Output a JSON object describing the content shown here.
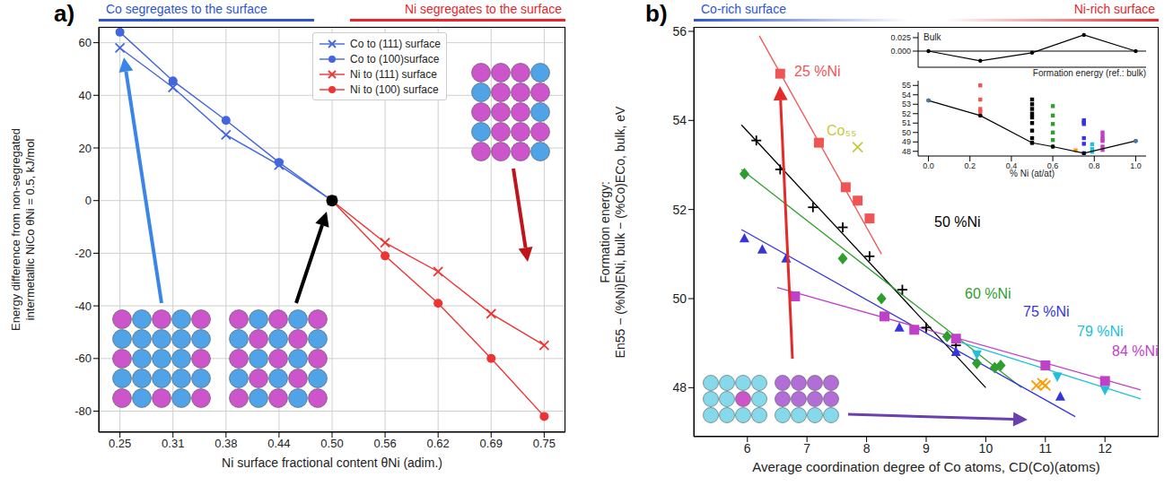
{
  "chart_data": [
    {
      "type": "line",
      "panel_label": "a)",
      "annotations": [
        {
          "text": "Co segregates to the surface",
          "color": "#2d55d6"
        },
        {
          "text": "Ni segregates to the surface",
          "color": "#e8262b"
        }
      ],
      "xlabel": "Ni surface fractional content θNi (adim.)",
      "ylabel": [
        "Energy difference from non-segregated",
        "intermetallic NiCo θNi = 0.5, kJ/mol"
      ],
      "xlim": [
        0.225,
        0.775
      ],
      "xticks": [
        0.25,
        {
          "value": 0.3125,
          "label": "0.31"
        },
        {
          "value": 0.375,
          "label": "0.38"
        },
        {
          "value": 0.4375,
          "label": "0.44"
        },
        {
          "value": 0.5,
          "label": "0.50"
        },
        {
          "value": 0.5625,
          "label": "0.56"
        },
        {
          "value": 0.625,
          "label": "0.62"
        },
        {
          "value": 0.6875,
          "label": "0.69"
        },
        0.75
      ],
      "ylim": [
        -88,
        66
      ],
      "yticks": [
        -80,
        -60,
        -40,
        -20,
        0,
        20,
        40,
        60
      ],
      "grid": true,
      "legend": "upper right",
      "series": [
        {
          "name": "Co to (111) surface",
          "color": "#4466dd",
          "marker": "x",
          "x": [
            0.25,
            0.3125,
            0.375,
            0.4375,
            0.5
          ],
          "values": [
            58,
            43,
            25,
            13.5,
            0
          ]
        },
        {
          "name": "Co to (100)surface",
          "color": "#4466dd",
          "marker": "circle",
          "x": [
            0.25,
            0.3125,
            0.375,
            0.4375,
            0.5
          ],
          "values": [
            64,
            45.5,
            30.5,
            14.5,
            0
          ]
        },
        {
          "name": "Ni to (111) surface",
          "color": "#ee3333",
          "marker": "x",
          "x": [
            0.5,
            0.5625,
            0.625,
            0.6875,
            0.75
          ],
          "values": [
            0,
            -16,
            -27,
            -43,
            -55
          ]
        },
        {
          "name": "Ni to (100) surface",
          "color": "#ee3333",
          "marker": "circle",
          "x": [
            0.5,
            0.5625,
            0.625,
            0.6875,
            0.75
          ],
          "values": [
            0,
            -21,
            -39,
            -60,
            -82
          ]
        }
      ],
      "point": {
        "x": 0.5,
        "y": 0,
        "color": "#000000"
      }
    },
    {
      "type": "scatter",
      "panel_label": "b)",
      "annotations": [
        {
          "text": "Co-rich surface",
          "color": "#2d55d6"
        },
        {
          "text": "Ni-rich surface",
          "color": "#e8262b"
        }
      ],
      "xlabel": "Average coordination degree of Co atoms, CD(Co)(atoms)",
      "ylabel": [
        "Formation energy:",
        "En55 − (%Ni)ENi, bulk − (%Co)ECo, bulk, eV"
      ],
      "xlim": [
        5.1,
        12.9
      ],
      "xticks": [
        6,
        7,
        8,
        9,
        10,
        11,
        12
      ],
      "ylim": [
        46.9,
        56.1
      ],
      "yticks": [
        48,
        50,
        52,
        54,
        56
      ],
      "grid": false,
      "series": [
        {
          "name": "25 %Ni",
          "color": "#f05555",
          "marker": "square",
          "x": [
            6.55,
            7.2,
            7.65,
            7.85,
            8.05
          ],
          "values": [
            55.05,
            53.5,
            52.5,
            52.2,
            51.8
          ],
          "fit": {
            "x": [
              6.2,
              8.25
            ],
            "values": [
              55.9,
              51.0
            ]
          }
        },
        {
          "name": "50 %Ni",
          "color": "#000000",
          "marker": "plus",
          "x": [
            6.15,
            6.55,
            7.1,
            7.6,
            8.05,
            8.6,
            9.0,
            9.5
          ],
          "values": [
            53.55,
            52.9,
            52.05,
            51.6,
            50.95,
            50.2,
            49.35,
            48.95
          ],
          "fit": {
            "x": [
              5.9,
              10.0
            ],
            "values": [
              53.9,
              48.0
            ]
          }
        },
        {
          "name": "Co₅₅",
          "color": "#c8c83c",
          "marker": "x",
          "x": [
            7.85
          ],
          "values": [
            53.4
          ]
        },
        {
          "name": "60 %Ni",
          "color": "#2e9e2e",
          "marker": "diamond",
          "x": [
            5.95,
            7.6,
            8.25,
            9.35,
            9.85,
            10.15,
            10.25
          ],
          "values": [
            52.8,
            50.9,
            50.0,
            49.15,
            48.55,
            48.45,
            48.5
          ],
          "fit": {
            "x": [
              5.9,
              10.6
            ],
            "values": [
              52.9,
              48.0
            ]
          }
        },
        {
          "name": "75 %Ni",
          "color": "#3535e0",
          "marker": "triangle",
          "x": [
            5.95,
            6.25,
            6.65,
            8.55,
            9.5,
            11.25
          ],
          "values": [
            51.35,
            51.1,
            50.9,
            49.35,
            48.8,
            47.8
          ],
          "fit": {
            "x": [
              5.9,
              11.5
            ],
            "values": [
              51.55,
              47.35
            ]
          }
        },
        {
          "name": "79 %Ni",
          "color": "#20c0d8",
          "marker": "triangle_down",
          "x": [
            9.85,
            11.2,
            12.0
          ],
          "values": [
            48.75,
            48.25,
            47.95
          ],
          "fit": {
            "x": [
              9.5,
              12.6
            ],
            "values": [
              49.05,
              47.75
            ]
          }
        },
        {
          "name": "84 %Ni",
          "color": "#c040c8",
          "marker": "square",
          "x": [
            6.8,
            8.3,
            8.8,
            9.5,
            11.0,
            12.0
          ],
          "values": [
            50.05,
            49.6,
            49.3,
            49.1,
            48.5,
            48.15
          ],
          "fit": {
            "x": [
              6.5,
              12.6
            ],
            "values": [
              50.25,
              47.95
            ]
          }
        },
        {
          "color": "#ff9900",
          "marker": "x",
          "x": [
            10.85,
            10.95,
            11.0
          ],
          "values": [
            48.05,
            48.1,
            48.05
          ]
        }
      ]
    },
    {
      "type": "line",
      "title": "Bulk",
      "xlim": [
        -0.05,
        1.05
      ],
      "tick_labels": "y",
      "ylim": [
        -0.03,
        0.035
      ],
      "yticks": [
        {
          "value": 0,
          "label": "0.000"
        },
        0.025
      ],
      "hline": 0,
      "series": [
        {
          "type": "line",
          "color": "#000000",
          "marker": "circle",
          "x": [
            0,
            0.25,
            0.5,
            0.75,
            1
          ],
          "values": [
            0,
            -0.018,
            -0.003,
            0.03,
            0
          ]
        }
      ]
    },
    {
      "type": "line",
      "title": "Formation energy (ref.: bulk)",
      "xlabel": "% Ni (at/at)",
      "xlim": [
        -0.05,
        1.05
      ],
      "xticks": [
        {
          "value": 0,
          "label": "0.0"
        },
        0.2,
        0.4,
        0.6,
        0.8,
        {
          "value": 1,
          "label": "1.0"
        }
      ],
      "ylim": [
        47.5,
        55.5
      ],
      "yticks": [
        48,
        49,
        50,
        51,
        52,
        53,
        54,
        55
      ],
      "series": [
        {
          "type": "scatter",
          "color": "#f05555",
          "marker": "square",
          "x": 0.25,
          "values": [
            55.0,
            53.5,
            52.5,
            52.2,
            51.8
          ]
        },
        {
          "type": "scatter",
          "color": "#000000",
          "marker": "square",
          "x": 0.5,
          "values": [
            53.5,
            53.0,
            52.5,
            52.0,
            51.6,
            51.0,
            50.2,
            49.4,
            48.9
          ]
        },
        {
          "type": "scatter",
          "color": "#2e9e2e",
          "marker": "square",
          "x": 0.6,
          "values": [
            52.8,
            51.8,
            50.9,
            50.0,
            49.2,
            48.5
          ]
        },
        {
          "type": "scatter",
          "color": "#ff9900",
          "marker": "square",
          "x": 0.71,
          "values": [
            48.1
          ]
        },
        {
          "type": "scatter",
          "color": "#3535e0",
          "marker": "square",
          "x": 0.75,
          "values": [
            51.3,
            51.1,
            50.9,
            49.4,
            48.8,
            47.8
          ]
        },
        {
          "type": "scatter",
          "color": "#20c0d8",
          "marker": "square",
          "x": 0.79,
          "values": [
            48.75,
            48.25,
            47.95
          ]
        },
        {
          "type": "scatter",
          "color": "#c040c8",
          "marker": "square",
          "x": 0.84,
          "values": [
            50.0,
            49.6,
            49.3,
            49.1,
            48.5,
            48.15
          ]
        },
        {
          "type": "line",
          "color": "#000000",
          "marker": "circle",
          "x": [
            0,
            0.25,
            0.5,
            0.6,
            0.75,
            1
          ],
          "values": [
            53.4,
            51.8,
            48.9,
            48.5,
            47.8,
            49.1
          ]
        },
        {
          "type": "scatter",
          "color": "#4a7ab0",
          "marker": "circle",
          "x": [
            0,
            1
          ],
          "values": [
            53.4,
            49.1
          ]
        }
      ]
    }
  ]
}
